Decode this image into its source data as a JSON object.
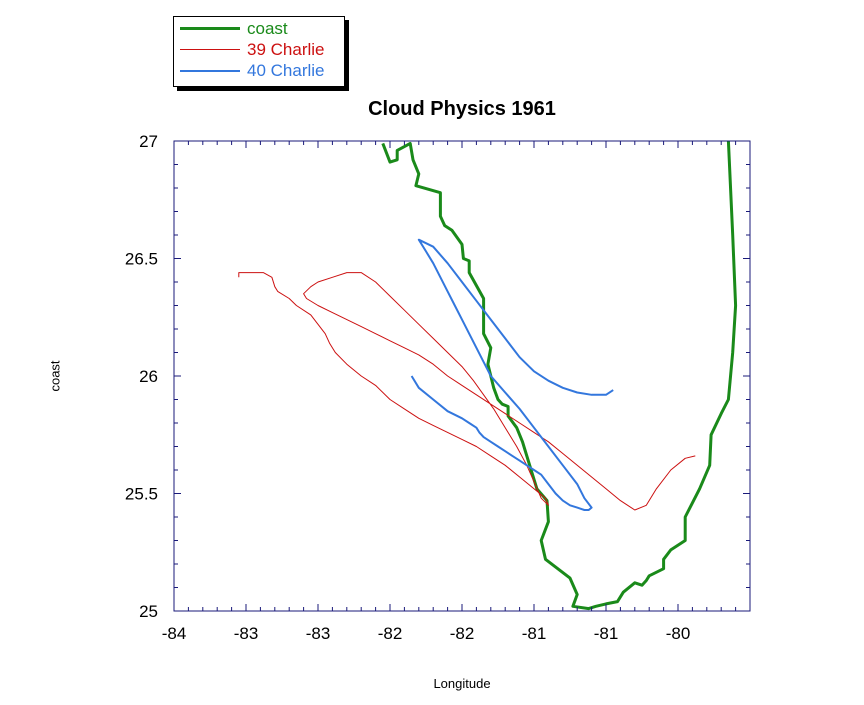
{
  "chart_data": {
    "type": "line",
    "title": "Cloud Physics 1961",
    "xlabel": "Longitude",
    "ylabel": "coast",
    "xlim": [
      -84,
      -80
    ],
    "ylim": [
      25,
      27
    ],
    "x_tick_labels": [
      "-84",
      "-83",
      "-83",
      "-82",
      "-82",
      "-81",
      "-81",
      "-80"
    ],
    "y_tick_labels": [
      "25",
      "25.5",
      "26",
      "26.5",
      "27"
    ],
    "grid": false,
    "legend": "top-left-outside",
    "series": [
      {
        "name": "coast",
        "color": "#1a8a1a",
        "x": [
          -82.55,
          -82.5,
          -82.45,
          -82.45,
          -82.36,
          -82.34,
          -82.3,
          -82.32,
          -82.15,
          -82.15,
          -82.12,
          -82.07,
          -82.0,
          -81.99,
          -81.95,
          -81.95,
          -81.85,
          -81.85,
          -81.8,
          -81.82,
          -81.78,
          -81.75,
          -81.72,
          -81.68,
          -81.68,
          -81.62,
          -81.58,
          -81.52,
          -81.48,
          -81.41,
          -81.4,
          -81.45,
          -81.42,
          -81.25,
          -81.2,
          -81.23,
          -81.12,
          -81.07,
          -81.0,
          -80.92,
          -80.88,
          -80.8,
          -80.75,
          -80.72,
          -80.7,
          -80.6,
          -80.6,
          -80.55,
          -80.45,
          -80.45,
          -80.35,
          -80.28,
          -80.27,
          -80.2,
          -80.15,
          -80.12,
          -80.1,
          -80.12,
          -80.15
        ],
        "y": [
          26.99,
          26.91,
          26.92,
          26.96,
          26.99,
          26.92,
          26.86,
          26.81,
          26.78,
          26.68,
          26.64,
          26.62,
          26.56,
          26.5,
          26.49,
          26.44,
          26.33,
          26.18,
          26.12,
          26.05,
          25.95,
          25.9,
          25.88,
          25.87,
          25.83,
          25.78,
          25.72,
          25.6,
          25.52,
          25.47,
          25.38,
          25.3,
          25.22,
          25.14,
          25.07,
          25.02,
          25.01,
          25.02,
          25.03,
          25.04,
          25.08,
          25.12,
          25.11,
          25.13,
          25.15,
          25.18,
          25.22,
          25.26,
          25.3,
          25.4,
          25.52,
          25.62,
          25.75,
          25.84,
          25.9,
          26.1,
          26.3,
          26.6,
          27.0
        ]
      },
      {
        "name": "39 Charlie",
        "color": "#cc1111",
        "x": [
          -83.55,
          -83.55,
          -83.38,
          -83.32,
          -83.3,
          -83.28,
          -83.2,
          -83.15,
          -83.05,
          -83.0,
          -82.95,
          -82.92,
          -82.88,
          -82.8,
          -82.7,
          -82.6,
          -82.5,
          -82.4,
          -82.3,
          -82.2,
          -82.1,
          -82.0,
          -81.9,
          -81.8,
          -81.7,
          -81.6,
          -81.5,
          -81.42,
          -81.4,
          -81.45,
          -81.5,
          -81.55,
          -81.62,
          -81.7,
          -81.78,
          -81.85,
          -81.92,
          -82.0,
          -82.1,
          -82.2,
          -82.3,
          -82.4,
          -82.5,
          -82.6,
          -82.7,
          -82.8,
          -82.9,
          -83.0,
          -83.05,
          -83.1,
          -83.08,
          -83.0,
          -82.9,
          -82.8,
          -82.7,
          -82.6,
          -82.5,
          -82.4,
          -82.3,
          -82.2,
          -82.1,
          -82.0,
          -81.9,
          -81.8,
          -81.7,
          -81.6,
          -81.5,
          -81.4,
          -81.3,
          -81.2,
          -81.1,
          -81.0,
          -80.9,
          -80.8,
          -80.72,
          -80.65,
          -80.55,
          -80.45,
          -80.38
        ],
        "y": [
          26.42,
          26.44,
          26.44,
          26.42,
          26.38,
          26.36,
          26.33,
          26.3,
          26.26,
          26.22,
          26.18,
          26.14,
          26.1,
          26.05,
          26.0,
          25.96,
          25.9,
          25.86,
          25.82,
          25.79,
          25.76,
          25.73,
          25.7,
          25.66,
          25.62,
          25.57,
          25.52,
          25.48,
          25.45,
          25.48,
          25.55,
          25.62,
          25.7,
          25.78,
          25.86,
          25.92,
          25.98,
          26.04,
          26.1,
          26.16,
          26.22,
          26.28,
          26.34,
          26.4,
          26.44,
          26.44,
          26.42,
          26.4,
          26.38,
          26.35,
          26.33,
          26.3,
          26.27,
          26.24,
          26.21,
          26.18,
          26.15,
          26.12,
          26.09,
          26.05,
          26.0,
          25.96,
          25.92,
          25.88,
          25.84,
          25.8,
          25.76,
          25.72,
          25.67,
          25.62,
          25.57,
          25.52,
          25.47,
          25.43,
          25.45,
          25.52,
          25.6,
          25.65,
          25.66
        ]
      },
      {
        "name": "40 Charlie",
        "color": "#3377dd",
        "x": [
          -82.35,
          -82.3,
          -82.2,
          -82.1,
          -82.0,
          -81.95,
          -81.9,
          -81.88,
          -81.85,
          -81.8,
          -81.75,
          -81.7,
          -81.65,
          -81.6,
          -81.55,
          -81.5,
          -81.45,
          -81.4,
          -81.35,
          -81.3,
          -81.25,
          -81.2,
          -81.15,
          -81.12,
          -81.1,
          -81.15,
          -81.2,
          -81.3,
          -81.4,
          -81.5,
          -81.6,
          -81.7,
          -81.8,
          -81.85,
          -81.9,
          -81.95,
          -82.0,
          -82.05,
          -82.1,
          -82.15,
          -82.2,
          -82.25,
          -82.3,
          -82.2,
          -82.1,
          -82.0,
          -81.9,
          -81.8,
          -81.7,
          -81.6,
          -81.5,
          -81.4,
          -81.3,
          -81.2,
          -81.1,
          -81.0,
          -80.95
        ],
        "y": [
          26.0,
          25.95,
          25.9,
          25.85,
          25.82,
          25.8,
          25.78,
          25.76,
          25.74,
          25.72,
          25.7,
          25.68,
          25.66,
          25.64,
          25.62,
          25.6,
          25.58,
          25.54,
          25.5,
          25.47,
          25.45,
          25.44,
          25.43,
          25.43,
          25.44,
          25.48,
          25.54,
          25.62,
          25.7,
          25.78,
          25.86,
          25.93,
          26.0,
          26.06,
          26.12,
          26.18,
          26.24,
          26.3,
          26.36,
          26.42,
          26.48,
          26.53,
          26.58,
          26.55,
          26.48,
          26.4,
          26.32,
          26.24,
          26.16,
          26.08,
          26.02,
          25.98,
          25.95,
          25.93,
          25.92,
          25.92,
          25.94
        ]
      }
    ]
  }
}
